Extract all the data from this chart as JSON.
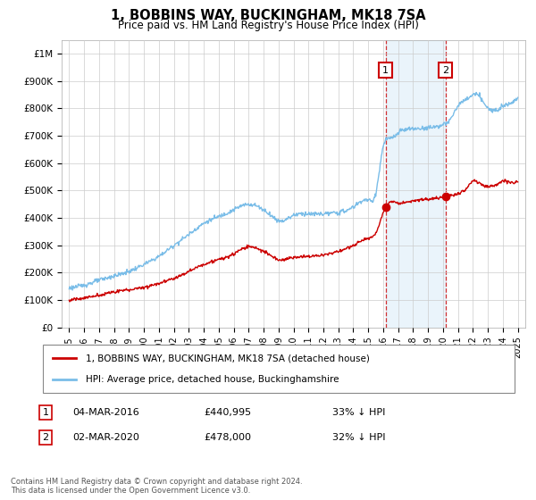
{
  "title": "1, BOBBINS WAY, BUCKINGHAM, MK18 7SA",
  "subtitle": "Price paid vs. HM Land Registry's House Price Index (HPI)",
  "footer": "Contains HM Land Registry data © Crown copyright and database right 2024.\nThis data is licensed under the Open Government Licence v3.0.",
  "legend_line1": "1, BOBBINS WAY, BUCKINGHAM, MK18 7SA (detached house)",
  "legend_line2": "HPI: Average price, detached house, Buckinghamshire",
  "ann1_date": "04-MAR-2016",
  "ann1_price": "£440,995",
  "ann1_pct": "33% ↓ HPI",
  "ann2_date": "02-MAR-2020",
  "ann2_price": "£478,000",
  "ann2_pct": "32% ↓ HPI",
  "hpi_color": "#7abde8",
  "price_color": "#cc0000",
  "marker_color": "#cc0000",
  "vline_color": "#cc0000",
  "shade_color": "#d6eaf8",
  "bg_color": "#ffffff",
  "grid_color": "#cccccc",
  "ylim": [
    0,
    1050000
  ],
  "yticks": [
    0,
    100000,
    200000,
    300000,
    400000,
    500000,
    600000,
    700000,
    800000,
    900000,
    1000000
  ],
  "ytick_labels": [
    "£0",
    "£100K",
    "£200K",
    "£300K",
    "£400K",
    "£500K",
    "£600K",
    "£700K",
    "£800K",
    "£900K",
    "£1M"
  ],
  "sale1_x": 2016.17,
  "sale1_y": 440995,
  "sale2_x": 2020.17,
  "sale2_y": 478000,
  "xlim": [
    1994.5,
    2025.5
  ]
}
